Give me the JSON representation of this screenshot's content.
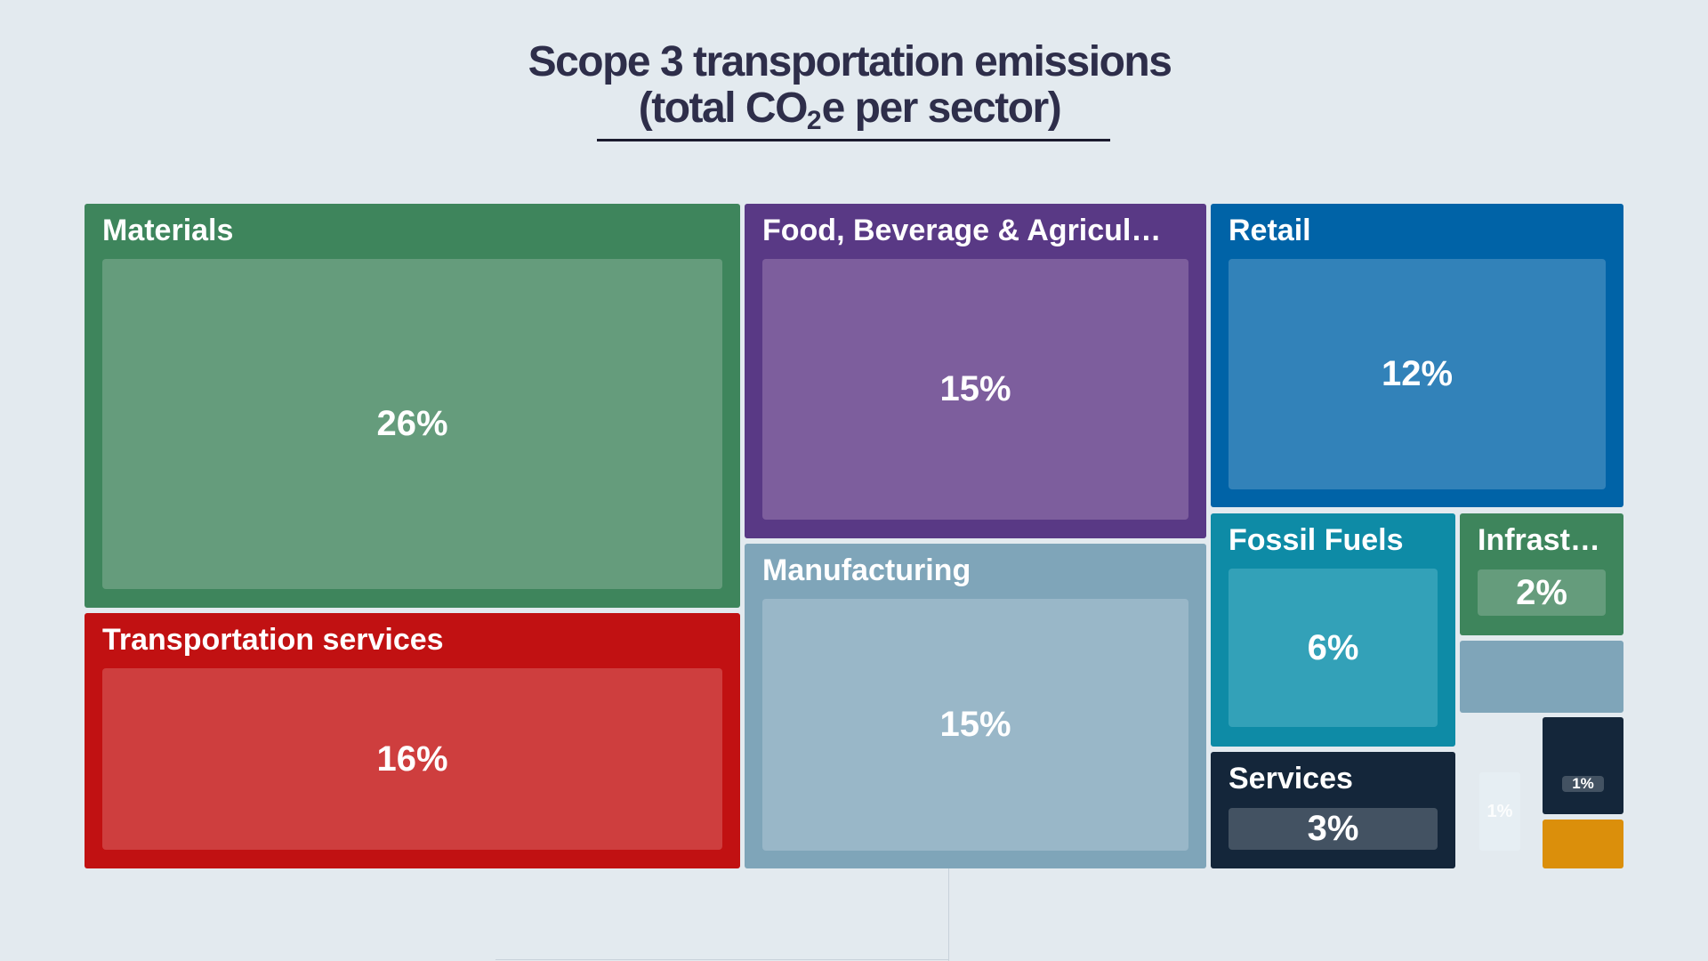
{
  "title_line1": "Scope 3 transportation emissions",
  "title_line2_pre": "(total CO",
  "title_line2_sub": "2",
  "title_line2_post": "e per sector)",
  "chart_data": {
    "type": "treemap",
    "unit": "%",
    "sectors": [
      {
        "key": "materials",
        "name": "Materials",
        "value": 26,
        "value_label": "26%",
        "color": "#3e855c",
        "inner_color": "#659c7c"
      },
      {
        "key": "transportation",
        "name": "Transportation services",
        "value": 16,
        "value_label": "16%",
        "color": "#c11112",
        "inner_color": "#ce3e3e"
      },
      {
        "key": "food",
        "name": "Food, Beverage & Agricul…",
        "value": 15,
        "value_label": "15%",
        "color": "#593985",
        "inner_color": "#7d5e9d"
      },
      {
        "key": "manufacturing",
        "name": "Manufacturing",
        "value": 15,
        "value_label": "15%",
        "color": "#7fa5b9",
        "inner_color": "#99b7c8"
      },
      {
        "key": "retail",
        "name": "Retail",
        "value": 12,
        "value_label": "12%",
        "color": "#0063a7",
        "inner_color": "#3282b9"
      },
      {
        "key": "fossil",
        "name": "Fossil Fuels",
        "value": 6,
        "value_label": "6%",
        "color": "#0e8ba6",
        "inner_color": "#33a1b8"
      },
      {
        "key": "infra",
        "name": "Infrast…",
        "value": 2,
        "value_label": "2%",
        "color": "#3e855c",
        "inner_color": "#659c7c"
      },
      {
        "key": "services",
        "name": "Services",
        "value": 3,
        "value_label": "3%",
        "color": "#14263a",
        "inner_color": "#435262"
      },
      {
        "key": "unlabeled_a",
        "name": "",
        "value": 1,
        "value_label": "",
        "color": "#7fa5b9",
        "inner_color": ""
      },
      {
        "key": "unlabeled_b",
        "name": "",
        "value": 1,
        "value_label": "1%",
        "color": "#e6eef3",
        "inner_color": ""
      },
      {
        "key": "unlabeled_c",
        "name": "",
        "value": 1,
        "value_label": "1%",
        "color": "#14263a",
        "inner_color": "#435262"
      },
      {
        "key": "unlabeled_d",
        "name": "",
        "value": 1,
        "value_label": "",
        "color": "#db8f0b",
        "inner_color": ""
      }
    ]
  }
}
